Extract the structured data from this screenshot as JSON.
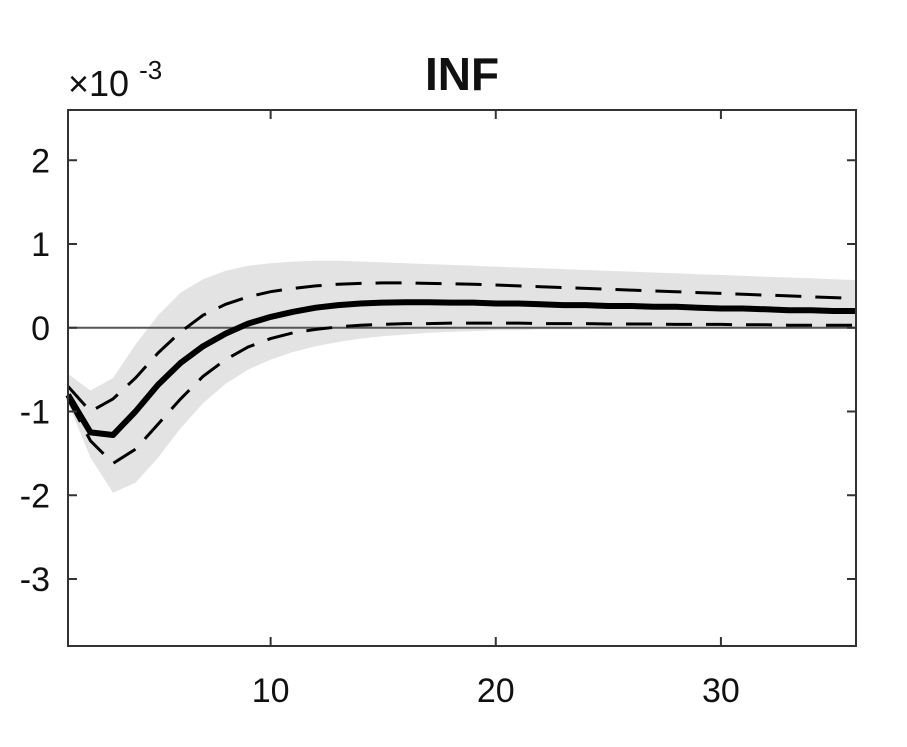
{
  "chart_data": {
    "type": "line",
    "title": "INF",
    "xlabel": "",
    "ylabel": "",
    "y_scale_label": "×10",
    "y_scale_exponent": "-3",
    "xlim": [
      1,
      36
    ],
    "ylim": [
      -3.8,
      2.6
    ],
    "x_ticks": [
      10,
      20,
      30
    ],
    "y_ticks": [
      2,
      1,
      0,
      -1,
      -2,
      -3
    ],
    "grid": false,
    "legend": "none",
    "zero_line": 0,
    "colors": {
      "band": "#e3e3e3",
      "median": "#000000",
      "bounds": "#000000",
      "axis": "#333333"
    },
    "x": [
      1,
      2,
      3,
      4,
      5,
      6,
      7,
      8,
      9,
      10,
      11,
      12,
      13,
      14,
      15,
      16,
      17,
      18,
      19,
      20,
      21,
      22,
      23,
      24,
      25,
      26,
      27,
      28,
      29,
      30,
      31,
      32,
      33,
      34,
      35,
      36
    ],
    "series": [
      {
        "role": "band-upper",
        "values": [
          -0.55,
          -0.75,
          -0.6,
          -0.2,
          0.15,
          0.42,
          0.58,
          0.68,
          0.74,
          0.77,
          0.79,
          0.8,
          0.8,
          0.79,
          0.78,
          0.77,
          0.76,
          0.75,
          0.74,
          0.73,
          0.72,
          0.71,
          0.7,
          0.69,
          0.68,
          0.67,
          0.66,
          0.65,
          0.64,
          0.63,
          0.62,
          0.61,
          0.6,
          0.59,
          0.58,
          0.57
        ]
      },
      {
        "role": "upper-bound",
        "values": [
          -0.7,
          -1.0,
          -0.85,
          -0.6,
          -0.3,
          -0.05,
          0.15,
          0.28,
          0.37,
          0.43,
          0.47,
          0.5,
          0.52,
          0.53,
          0.535,
          0.535,
          0.53,
          0.525,
          0.52,
          0.51,
          0.5,
          0.49,
          0.48,
          0.47,
          0.46,
          0.45,
          0.44,
          0.43,
          0.42,
          0.41,
          0.4,
          0.39,
          0.38,
          0.37,
          0.36,
          0.35
        ]
      },
      {
        "role": "median",
        "values": [
          -0.8,
          -1.25,
          -1.28,
          -1.0,
          -0.68,
          -0.42,
          -0.22,
          -0.07,
          0.05,
          0.13,
          0.19,
          0.24,
          0.27,
          0.29,
          0.3,
          0.305,
          0.305,
          0.3,
          0.3,
          0.29,
          0.29,
          0.28,
          0.27,
          0.27,
          0.26,
          0.26,
          0.25,
          0.25,
          0.24,
          0.23,
          0.23,
          0.22,
          0.21,
          0.21,
          0.2,
          0.2
        ]
      },
      {
        "role": "lower-bound",
        "values": [
          -0.85,
          -1.35,
          -1.62,
          -1.45,
          -1.15,
          -0.85,
          -0.58,
          -0.38,
          -0.23,
          -0.13,
          -0.06,
          -0.02,
          0.01,
          0.03,
          0.04,
          0.05,
          0.05,
          0.055,
          0.055,
          0.055,
          0.055,
          0.05,
          0.05,
          0.05,
          0.045,
          0.045,
          0.045,
          0.04,
          0.04,
          0.04,
          0.035,
          0.035,
          0.03,
          0.03,
          0.03,
          0.03
        ]
      },
      {
        "role": "band-lower",
        "values": [
          -0.9,
          -1.55,
          -1.97,
          -1.85,
          -1.55,
          -1.2,
          -0.9,
          -0.67,
          -0.5,
          -0.38,
          -0.29,
          -0.22,
          -0.17,
          -0.13,
          -0.1,
          -0.08,
          -0.06,
          -0.05,
          -0.04,
          -0.03,
          -0.03,
          -0.02,
          -0.02,
          -0.02,
          -0.01,
          -0.01,
          -0.01,
          -0.01,
          -0.01,
          0.0,
          0.0,
          0.0,
          0.0,
          0.0,
          0.0,
          0.0
        ]
      }
    ]
  }
}
